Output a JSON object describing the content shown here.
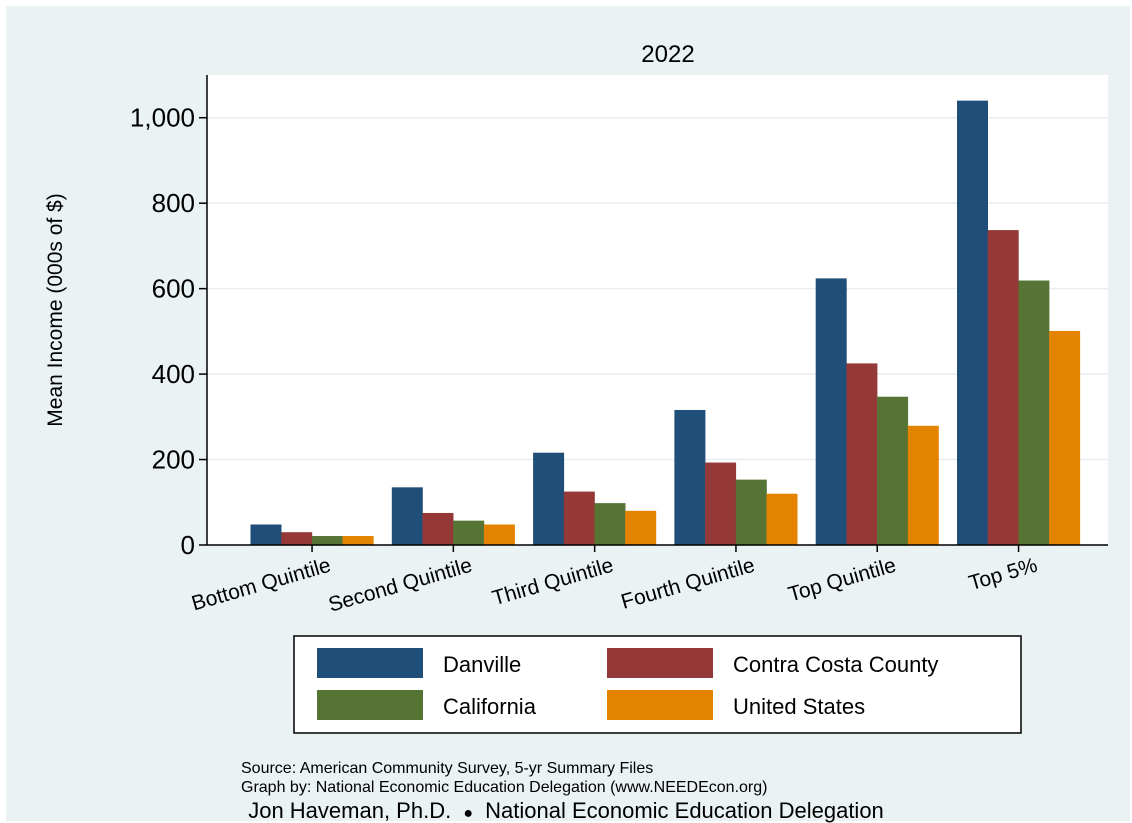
{
  "chart_data": {
    "type": "bar",
    "title": "2022",
    "ylabel": "Mean Income (000s of $)",
    "xlabel": "",
    "ylim": [
      0,
      1100
    ],
    "yticks": [
      0,
      200,
      400,
      600,
      800,
      1000
    ],
    "ytick_labels": [
      "0",
      "200",
      "400",
      "600",
      "800",
      "1,000"
    ],
    "grid": true,
    "legend_position": "bottom",
    "categories": [
      "Bottom Quintile",
      "Second Quintile",
      "Third Quintile",
      "Fourth Quintile",
      "Top Quintile",
      "Top 5%"
    ],
    "series": [
      {
        "name": "Danville",
        "color": "#1f4e79",
        "values": [
          48,
          135,
          216,
          316,
          624,
          1040
        ]
      },
      {
        "name": "Contra Costa County",
        "color": "#943838",
        "values": [
          30,
          75,
          125,
          193,
          425,
          737
        ]
      },
      {
        "name": "California",
        "color": "#567535",
        "values": [
          21,
          57,
          98,
          153,
          347,
          619
        ]
      },
      {
        "name": "United States",
        "color": "#e38300",
        "values": [
          21,
          48,
          80,
          120,
          279,
          501
        ]
      }
    ]
  },
  "notes": {
    "source": "Source: American Community Survey, 5-yr Summary Files",
    "graph_by": "Graph by: National Economic Education Delegation (www.NEEDEcon.org)"
  },
  "footer": {
    "author": "Jon Haveman, Ph.D.",
    "separator": "●",
    "org": "National Economic Education Delegation"
  }
}
